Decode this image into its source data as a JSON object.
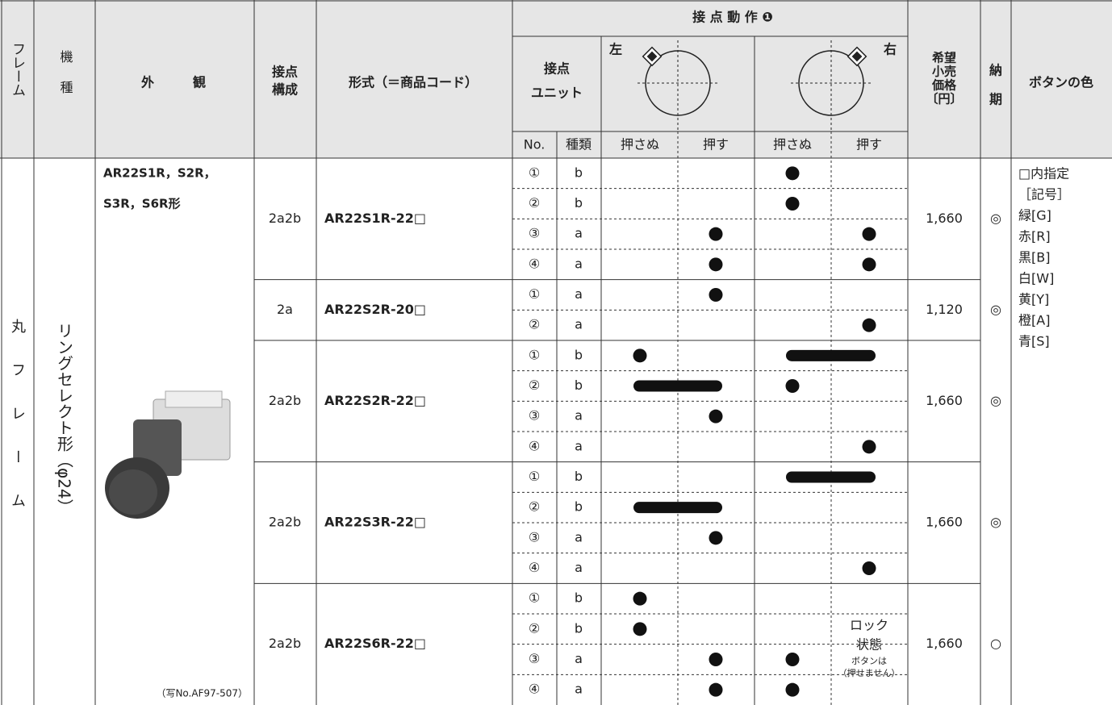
{
  "header": {
    "frame": "フレーム",
    "model": "機種",
    "appearance": "外　　　観",
    "contact_config": [
      "接点",
      "構成"
    ],
    "model_code": "形式（＝商品コード）",
    "contact_operation": "接 点 動 作 ❶",
    "contact_unit": [
      "接点",
      "ユニット"
    ],
    "left": "左",
    "right": "右",
    "no": "No.",
    "kind": "種類",
    "left_released": "押さぬ",
    "left_pressed": "押す",
    "right_released": "押さぬ",
    "right_pressed": "押す",
    "price": [
      "希望",
      "小売",
      "価格",
      "〔円〕"
    ],
    "delivery": [
      "納",
      "期"
    ],
    "button_color": "ボタンの色"
  },
  "frame": "丸フレーム",
  "model": "リングセレクト形（φ24）",
  "appearance": {
    "lines": [
      "AR22S1R，S2R，",
      "S3R，S6R形"
    ],
    "photo_caption": "（写No.AF97-507）"
  },
  "groups": [
    {
      "config": "2a2b",
      "code": "AR22S1R-22□",
      "price": "1,660",
      "delivery": "◎",
      "contacts": [
        {
          "no": "①",
          "type": "b",
          "on": [
            false,
            false,
            true,
            false
          ]
        },
        {
          "no": "②",
          "type": "b",
          "on": [
            false,
            false,
            true,
            false
          ]
        },
        {
          "no": "③",
          "type": "a",
          "on": [
            false,
            true,
            false,
            true
          ]
        },
        {
          "no": "④",
          "type": "a",
          "on": [
            false,
            true,
            false,
            true
          ]
        }
      ]
    },
    {
      "config": "2a",
      "code": "AR22S2R-20□",
      "price": "1,120",
      "delivery": "◎",
      "contacts": [
        {
          "no": "①",
          "type": "a",
          "on": [
            false,
            true,
            false,
            false
          ]
        },
        {
          "no": "②",
          "type": "a",
          "on": [
            false,
            false,
            false,
            true
          ]
        }
      ]
    },
    {
      "config": "2a2b",
      "code": "AR22S2R-22□",
      "price": "1,660",
      "delivery": "◎",
      "contacts": [
        {
          "no": "①",
          "type": "b",
          "on": [
            true,
            false,
            true,
            true
          ]
        },
        {
          "no": "②",
          "type": "b",
          "on": [
            true,
            true,
            true,
            false
          ]
        },
        {
          "no": "③",
          "type": "a",
          "on": [
            false,
            true,
            false,
            false
          ]
        },
        {
          "no": "④",
          "type": "a",
          "on": [
            false,
            false,
            false,
            true
          ]
        }
      ]
    },
    {
      "config": "2a2b",
      "code": "AR22S3R-22□",
      "price": "1,660",
      "delivery": "◎",
      "contacts": [
        {
          "no": "①",
          "type": "b",
          "on": [
            false,
            false,
            true,
            true
          ]
        },
        {
          "no": "②",
          "type": "b",
          "on": [
            true,
            true,
            false,
            false
          ]
        },
        {
          "no": "③",
          "type": "a",
          "on": [
            false,
            true,
            false,
            false
          ]
        },
        {
          "no": "④",
          "type": "a",
          "on": [
            false,
            false,
            false,
            true
          ]
        }
      ]
    },
    {
      "config": "2a2b",
      "code": "AR22S6R-22□",
      "price": "1,660",
      "delivery": "○",
      "note": [
        "ロック",
        "状態",
        "ボタンは",
        "（押せません）"
      ],
      "contacts": [
        {
          "no": "①",
          "type": "b",
          "on": [
            true,
            false,
            false,
            false
          ]
        },
        {
          "no": "②",
          "type": "b",
          "on": [
            true,
            false,
            false,
            false
          ]
        },
        {
          "no": "③",
          "type": "a",
          "on": [
            false,
            true,
            true,
            false
          ]
        },
        {
          "no": "④",
          "type": "a",
          "on": [
            false,
            true,
            true,
            false
          ]
        }
      ]
    }
  ],
  "button_color": [
    "□内指定",
    "［記号］",
    "緑[G]",
    "赤[R]",
    "黒[B]",
    "白[W]",
    "黄[Y]",
    "橙[A]",
    "青[S]"
  ]
}
